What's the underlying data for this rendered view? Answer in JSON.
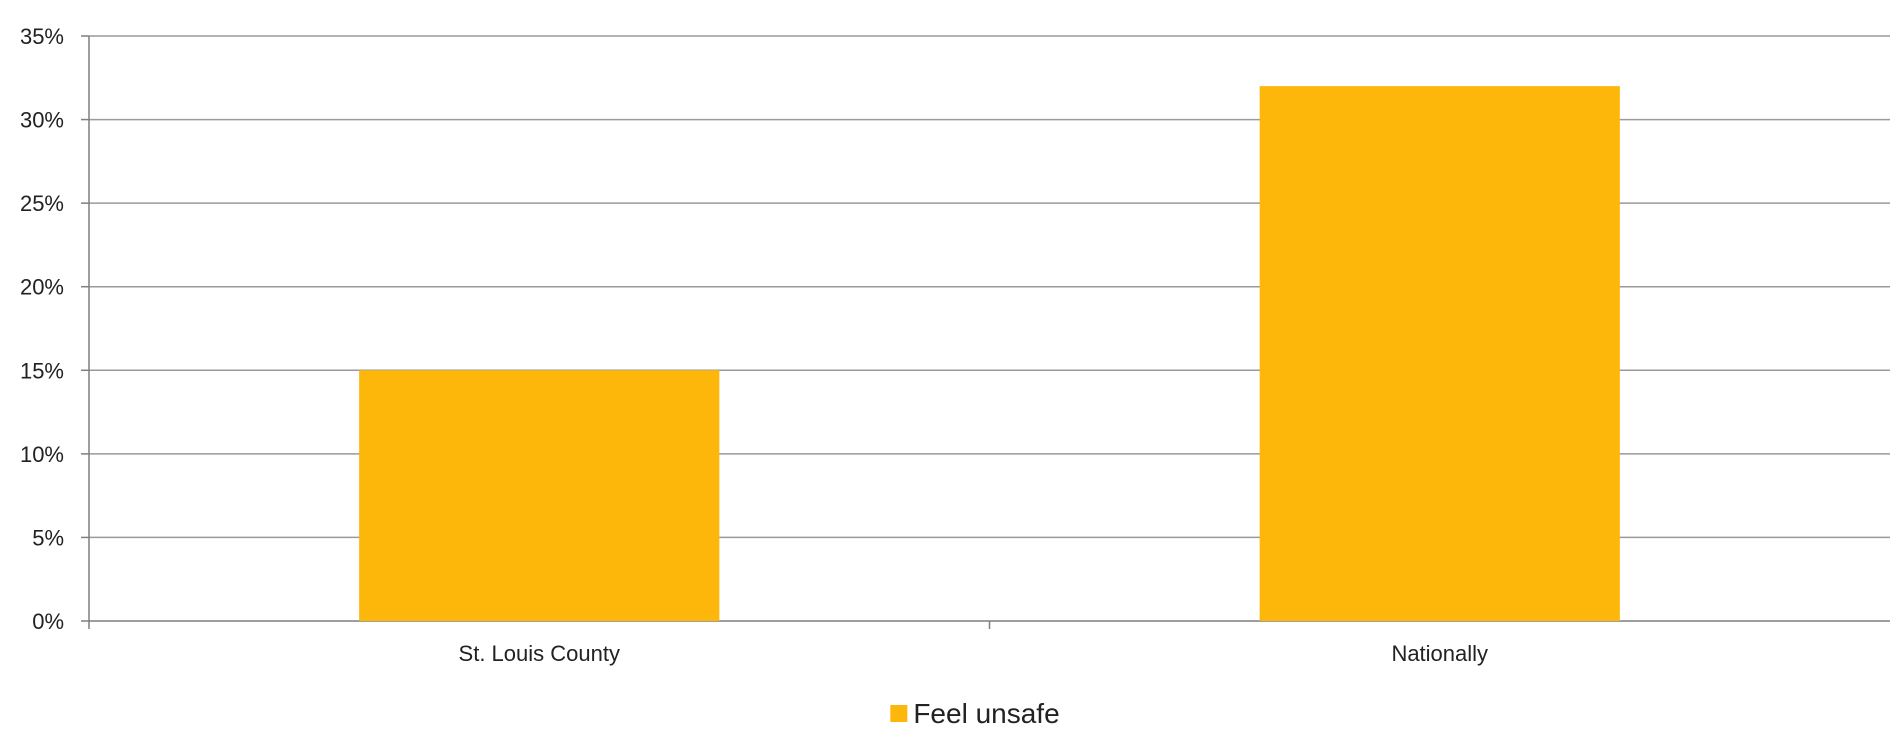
{
  "chart_data": {
    "type": "bar",
    "title": "",
    "xlabel": "",
    "ylabel": "",
    "categories": [
      "St. Louis County",
      "Nationally"
    ],
    "series": [
      {
        "name": "Feel unsafe",
        "values": [
          15,
          32
        ],
        "color": "#FDB60A"
      }
    ],
    "ylim": [
      0,
      35
    ],
    "y_ticks": [
      0,
      5,
      10,
      15,
      20,
      25,
      30,
      35
    ],
    "y_tick_format": "percent",
    "grid": true,
    "grid_color": "#9a9a9a",
    "legend_position": "bottom-center"
  }
}
